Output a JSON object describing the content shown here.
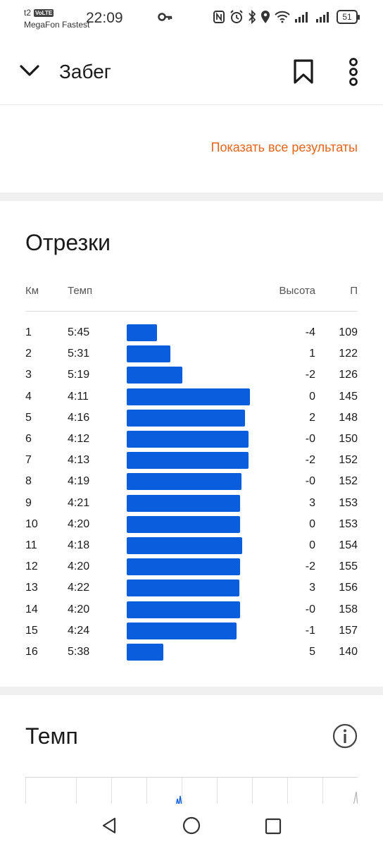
{
  "status_bar": {
    "carrier_short": "t2",
    "volte": "VoLTE",
    "carrier_name": "MegaFon Fastest",
    "time": "22:09",
    "battery": "51"
  },
  "header": {
    "title": "Забег"
  },
  "results": {
    "show_all_label": "Показать все результаты"
  },
  "splits": {
    "title": "Отрезки",
    "columns": {
      "km": "Км",
      "pace": "Темп",
      "elevation": "Высота",
      "hr": "П"
    },
    "rows": [
      {
        "km": "1",
        "pace": "5:45",
        "elev": "-4",
        "hr": "109",
        "bar": 0.247
      },
      {
        "km": "2",
        "pace": "5:31",
        "elev": "1",
        "hr": "122",
        "bar": 0.356
      },
      {
        "km": "3",
        "pace": "5:19",
        "elev": "-2",
        "hr": "126",
        "bar": 0.454
      },
      {
        "km": "4",
        "pace": "4:11",
        "elev": "0",
        "hr": "145",
        "bar": 1.0
      },
      {
        "km": "5",
        "pace": "4:16",
        "elev": "2",
        "hr": "148",
        "bar": 0.96
      },
      {
        "km": "6",
        "pace": "4:12",
        "elev": "-0",
        "hr": "150",
        "bar": 0.989
      },
      {
        "km": "7",
        "pace": "4:13",
        "elev": "-2",
        "hr": "152",
        "bar": 0.989
      },
      {
        "km": "8",
        "pace": "4:19",
        "elev": "-0",
        "hr": "152",
        "bar": 0.931
      },
      {
        "km": "9",
        "pace": "4:21",
        "elev": "3",
        "hr": "153",
        "bar": 0.92
      },
      {
        "km": "10",
        "pace": "4:20",
        "elev": "0",
        "hr": "153",
        "bar": 0.92
      },
      {
        "km": "11",
        "pace": "4:18",
        "elev": "0",
        "hr": "154",
        "bar": 0.937
      },
      {
        "km": "12",
        "pace": "4:20",
        "elev": "-2",
        "hr": "155",
        "bar": 0.92
      },
      {
        "km": "13",
        "pace": "4:22",
        "elev": "3",
        "hr": "156",
        "bar": 0.914
      },
      {
        "km": "14",
        "pace": "4:20",
        "elev": "-0",
        "hr": "158",
        "bar": 0.92
      },
      {
        "km": "15",
        "pace": "4:24",
        "elev": "-1",
        "hr": "157",
        "bar": 0.891
      },
      {
        "km": "16",
        "pace": "5:38",
        "elev": "5",
        "hr": "140",
        "bar": 0.299
      }
    ]
  },
  "tempo": {
    "title": "Темп"
  },
  "colors": {
    "accent": "#e8641b",
    "bar": "#0a5ddc"
  },
  "icons": {
    "back": "chevron-down-icon",
    "bookmark": "bookmark-icon",
    "more": "more-vertical-icon",
    "info": "info-icon"
  }
}
